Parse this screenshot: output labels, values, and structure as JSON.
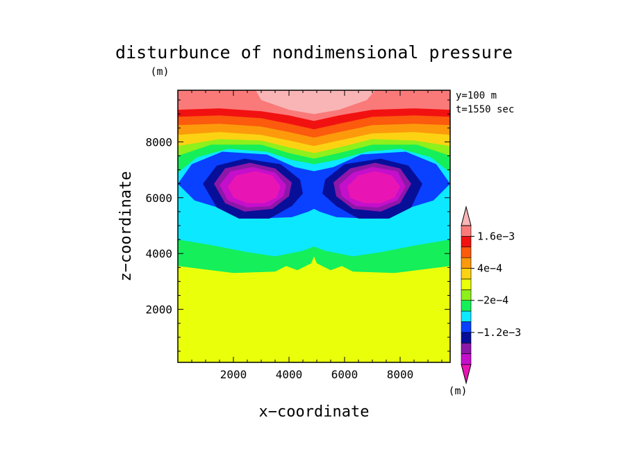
{
  "chart_data": {
    "type": "heatmap",
    "title": "disturbunce of nondimensional pressure",
    "units_label": "(m)",
    "info": [
      "y=100 m",
      "t=1550 sec"
    ],
    "xlabel": "x−coordinate",
    "ylabel": "z−coordinate",
    "xlim": [
      0,
      9800
    ],
    "ylim": [
      100,
      9850
    ],
    "x_ticks": [
      2000,
      4000,
      6000,
      8000
    ],
    "y_ticks": [
      2000,
      4000,
      6000,
      8000
    ],
    "x_tick_labels": [
      "2000",
      "4000",
      "6000",
      "8000"
    ],
    "y_tick_labels": [
      "2000",
      "4000",
      "6000",
      "8000"
    ],
    "colorbar": {
      "units_label": "(m)",
      "colors": [
        "#e815b4",
        "#c40fcb",
        "#8c17a8",
        "#070f99",
        "#0a40ff",
        "#0ce8ff",
        "#15ef5a",
        "#8ef01c",
        "#eaff0a",
        "#fcd312",
        "#fc9a0c",
        "#fc5a0d",
        "#f21111",
        "#fa7a7a",
        "#f9b5b5"
      ],
      "labels": [
        "1.6e−3",
        "4e−4",
        "−2e−4",
        "−1.2e−3"
      ],
      "label_after_index": [
        12,
        9,
        6,
        3
      ]
    },
    "bands": [
      {
        "name": "top-salmon",
        "color": "#fa7a7a",
        "z_profile": [
          [
            0,
            9850
          ],
          [
            9800,
            9850
          ]
        ]
      },
      {
        "name": "red",
        "color": "#f21111",
        "z_profile": [
          [
            0,
            9150
          ],
          [
            1500,
            9200
          ],
          [
            3000,
            9100
          ],
          [
            4000,
            8950
          ],
          [
            4900,
            8750
          ],
          [
            5800,
            8950
          ],
          [
            7000,
            9150
          ],
          [
            8500,
            9200
          ],
          [
            9800,
            9150
          ]
        ]
      },
      {
        "name": "orange-red",
        "color": "#fc5a0d",
        "z_profile": [
          [
            0,
            8900
          ],
          [
            1500,
            8950
          ],
          [
            3000,
            8850
          ],
          [
            4000,
            8650
          ],
          [
            4900,
            8450
          ],
          [
            5800,
            8650
          ],
          [
            7000,
            8900
          ],
          [
            8500,
            8950
          ],
          [
            9800,
            8900
          ]
        ]
      },
      {
        "name": "orange",
        "color": "#fc9a0c",
        "z_profile": [
          [
            0,
            8600
          ],
          [
            1500,
            8650
          ],
          [
            3000,
            8550
          ],
          [
            4000,
            8350
          ],
          [
            4900,
            8150
          ],
          [
            5800,
            8350
          ],
          [
            7000,
            8600
          ],
          [
            8500,
            8650
          ],
          [
            9800,
            8600
          ]
        ]
      },
      {
        "name": "yellow-orange",
        "color": "#fcd312",
        "z_profile": [
          [
            0,
            8250
          ],
          [
            1500,
            8350
          ],
          [
            3000,
            8250
          ],
          [
            4000,
            8050
          ],
          [
            4900,
            7850
          ],
          [
            5800,
            8050
          ],
          [
            7000,
            8300
          ],
          [
            8500,
            8350
          ],
          [
            9800,
            8250
          ]
        ]
      },
      {
        "name": "yellow-green",
        "color": "#8ef01c",
        "z_profile": [
          [
            0,
            7850
          ],
          [
            1500,
            8100
          ],
          [
            3000,
            8050
          ],
          [
            4000,
            7800
          ],
          [
            4900,
            7600
          ],
          [
            5800,
            7800
          ],
          [
            7000,
            8100
          ],
          [
            8500,
            8050
          ],
          [
            9800,
            7850
          ]
        ]
      },
      {
        "name": "green",
        "color": "#15ef5a",
        "z_profile": [
          [
            0,
            7500
          ],
          [
            1200,
            7900
          ],
          [
            3000,
            7900
          ],
          [
            4000,
            7600
          ],
          [
            4900,
            7400
          ],
          [
            5800,
            7600
          ],
          [
            7000,
            7900
          ],
          [
            8600,
            7900
          ],
          [
            9800,
            7500
          ]
        ]
      },
      {
        "name": "cyan",
        "color": "#0ce8ff",
        "z_profile": [
          [
            0,
            6900
          ],
          [
            700,
            7450
          ],
          [
            1800,
            7750
          ],
          [
            3200,
            7650
          ],
          [
            4100,
            7350
          ],
          [
            4900,
            7200
          ],
          [
            5700,
            7350
          ],
          [
            6800,
            7650
          ],
          [
            8000,
            7750
          ],
          [
            9100,
            7450
          ],
          [
            9800,
            6900
          ]
        ]
      },
      {
        "name": "lower-cyan",
        "color": "#0ce8ff",
        "z_profile": [
          [
            0,
            5250
          ],
          [
            1200,
            4950
          ],
          [
            2500,
            4750
          ],
          [
            3500,
            4650
          ],
          [
            4500,
            4850
          ],
          [
            4900,
            5000
          ],
          [
            5300,
            4850
          ],
          [
            6300,
            4650
          ],
          [
            7300,
            4750
          ],
          [
            8600,
            4950
          ],
          [
            9800,
            5250
          ]
        ]
      },
      {
        "name": "lower-green",
        "color": "#15ef5a",
        "z_profile": [
          [
            0,
            4500
          ],
          [
            1200,
            4300
          ],
          [
            2500,
            4050
          ],
          [
            3500,
            3900
          ],
          [
            4500,
            4100
          ],
          [
            4900,
            4250
          ],
          [
            5300,
            4100
          ],
          [
            6300,
            3900
          ],
          [
            7300,
            4050
          ],
          [
            8600,
            4300
          ],
          [
            9800,
            4500
          ]
        ]
      },
      {
        "name": "yellow-base",
        "color": "#eaff0a",
        "z_profile": [
          [
            0,
            3550
          ],
          [
            2000,
            3300
          ],
          [
            3500,
            3350
          ],
          [
            3900,
            3550
          ],
          [
            4300,
            3400
          ],
          [
            4800,
            3650
          ],
          [
            4900,
            3900
          ],
          [
            5000,
            3650
          ],
          [
            5500,
            3400
          ],
          [
            5900,
            3550
          ],
          [
            6300,
            3350
          ],
          [
            7800,
            3300
          ],
          [
            9800,
            3550
          ]
        ]
      }
    ],
    "shapes": [
      {
        "name": "light-pink-cap",
        "color": "#f9b5b5",
        "polygon": [
          [
            2800,
            9850
          ],
          [
            3000,
            9500
          ],
          [
            4000,
            9150
          ],
          [
            4900,
            9000
          ],
          [
            5800,
            9150
          ],
          [
            6800,
            9500
          ],
          [
            7100,
            9850
          ]
        ]
      },
      {
        "name": "blue-outer",
        "color": "#0a40ff",
        "polygon": [
          [
            0,
            6500
          ],
          [
            500,
            7200
          ],
          [
            1600,
            7650
          ],
          [
            3200,
            7550
          ],
          [
            4200,
            7100
          ],
          [
            4900,
            6950
          ],
          [
            5600,
            7100
          ],
          [
            6600,
            7550
          ],
          [
            8200,
            7650
          ],
          [
            9300,
            7200
          ],
          [
            9800,
            6500
          ],
          [
            9200,
            5900
          ],
          [
            8200,
            5600
          ],
          [
            7000,
            5250
          ],
          [
            5700,
            5300
          ],
          [
            5100,
            5500
          ],
          [
            4900,
            5600
          ],
          [
            4700,
            5500
          ],
          [
            4100,
            5300
          ],
          [
            2800,
            5250
          ],
          [
            1600,
            5600
          ],
          [
            600,
            5900
          ]
        ]
      },
      {
        "name": "navy-left",
        "color": "#070f99",
        "polygon": [
          [
            900,
            6500
          ],
          [
            1400,
            7150
          ],
          [
            2400,
            7400
          ],
          [
            3700,
            7200
          ],
          [
            4400,
            6650
          ],
          [
            4500,
            6150
          ],
          [
            4100,
            5700
          ],
          [
            3300,
            5250
          ],
          [
            2200,
            5250
          ],
          [
            1400,
            5650
          ]
        ]
      },
      {
        "name": "navy-right",
        "color": "#070f99",
        "polygon": [
          [
            5300,
            6650
          ],
          [
            6000,
            7200
          ],
          [
            7300,
            7400
          ],
          [
            8300,
            7150
          ],
          [
            8800,
            6500
          ],
          [
            8400,
            5650
          ],
          [
            7600,
            5250
          ],
          [
            6500,
            5250
          ],
          [
            5700,
            5700
          ],
          [
            5200,
            6150
          ]
        ]
      },
      {
        "name": "purple-left",
        "color": "#8c17a8",
        "polygon": [
          [
            1300,
            6500
          ],
          [
            1700,
            7050
          ],
          [
            2600,
            7250
          ],
          [
            3500,
            7050
          ],
          [
            4100,
            6550
          ],
          [
            4000,
            6050
          ],
          [
            3400,
            5600
          ],
          [
            2400,
            5500
          ],
          [
            1700,
            5800
          ]
        ]
      },
      {
        "name": "purple-right",
        "color": "#8c17a8",
        "polygon": [
          [
            5600,
            6550
          ],
          [
            6200,
            7050
          ],
          [
            7100,
            7250
          ],
          [
            8000,
            7050
          ],
          [
            8400,
            6500
          ],
          [
            8000,
            5800
          ],
          [
            7300,
            5500
          ],
          [
            6300,
            5600
          ],
          [
            5700,
            6050
          ]
        ]
      },
      {
        "name": "magenta-left",
        "color": "#c40fcb",
        "polygon": [
          [
            1500,
            6450
          ],
          [
            1900,
            6950
          ],
          [
            2700,
            7100
          ],
          [
            3500,
            6900
          ],
          [
            3900,
            6450
          ],
          [
            3800,
            6050
          ],
          [
            3300,
            5700
          ],
          [
            2500,
            5650
          ],
          [
            1800,
            5900
          ]
        ]
      },
      {
        "name": "magenta-right",
        "color": "#c40fcb",
        "polygon": [
          [
            5800,
            6450
          ],
          [
            6300,
            6900
          ],
          [
            7000,
            7100
          ],
          [
            7900,
            6950
          ],
          [
            8200,
            6400
          ],
          [
            7900,
            5900
          ],
          [
            7200,
            5650
          ],
          [
            6400,
            5700
          ],
          [
            5900,
            6050
          ]
        ]
      },
      {
        "name": "pink-core-left",
        "color": "#e815b4",
        "polygon": [
          [
            1800,
            6400
          ],
          [
            2100,
            6800
          ],
          [
            2800,
            6950
          ],
          [
            3400,
            6800
          ],
          [
            3700,
            6400
          ],
          [
            3550,
            6000
          ],
          [
            3100,
            5800
          ],
          [
            2500,
            5800
          ],
          [
            2000,
            6000
          ]
        ]
      },
      {
        "name": "pink-core-right",
        "color": "#e815b4",
        "polygon": [
          [
            6100,
            6400
          ],
          [
            6500,
            6800
          ],
          [
            7100,
            6950
          ],
          [
            7700,
            6800
          ],
          [
            8000,
            6400
          ],
          [
            7800,
            6000
          ],
          [
            7300,
            5800
          ],
          [
            6700,
            5800
          ],
          [
            6200,
            6000
          ]
        ]
      }
    ]
  }
}
